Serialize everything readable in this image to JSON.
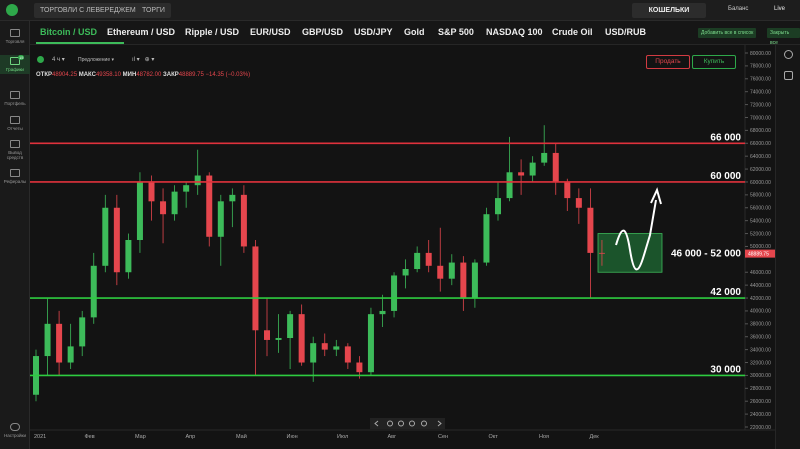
{
  "topbar": {
    "tabs": [
      "ТОРГОВЛИ С ЛЕВЕРЕДЖЕМ",
      "ТОРГИ"
    ],
    "wallets": "КОШЕЛЬКИ",
    "balance": "Баланс",
    "mode": "Live"
  },
  "sidebar": [
    "Торговля",
    "Графики",
    "Портфель",
    "Отчеты",
    "Вывод средств",
    "Рефералы"
  ],
  "settings": "Настройки",
  "badge": "15",
  "instruments": [
    "Bitcoin / USD",
    "Ethereum / USD",
    "Ripple / USD",
    "EUR/USD",
    "GBP/USD",
    "USD/JPY",
    "Gold",
    "S&P 500",
    "NASDAQ 100",
    "Crude Oil",
    "USD/RUB"
  ],
  "actions": [
    "Добавить все в список",
    "Закрыть все"
  ],
  "toolbar": {
    "interval": "4 ч",
    "price_type": "Предложение"
  },
  "buttons": {
    "sell": "Продать",
    "buy": "Купить"
  },
  "ohlc_info": [
    {
      "label": "ОТКР",
      "value": "48904.25"
    },
    {
      "label": "МАКС",
      "value": "49358.10"
    },
    {
      "label": "МИН",
      "value": "48782.00"
    },
    {
      "label": "ЗАКР",
      "value": "48889.75"
    }
  ],
  "change": "−14.35 (−0.03%)",
  "chart": {
    "type": "candlestick",
    "categories": [
      "2021",
      "Фев",
      "Мар",
      "Апр",
      "Май",
      "Июн",
      "Июл",
      "Авг",
      "Сен",
      "Окт",
      "Ноя",
      "Дек"
    ],
    "up_color": "#3dbb5a",
    "down_color": "#e5464d",
    "ylim": [
      22000,
      80000
    ],
    "yticks": [
      {
        "value": 80000,
        "label": "80000.00"
      },
      {
        "value": 78000,
        "label": "78000.00"
      },
      {
        "value": 76000,
        "label": "76000.00"
      },
      {
        "value": 74000,
        "label": "74000.00"
      },
      {
        "value": 72000,
        "label": "72000.00"
      },
      {
        "value": 70000,
        "label": "70000.00"
      },
      {
        "value": 68000,
        "label": "68000.00"
      },
      {
        "value": 66000,
        "label": "66000.00"
      },
      {
        "value": 64000,
        "label": "64000.00"
      },
      {
        "value": 62000,
        "label": "62000.00"
      },
      {
        "value": 60000,
        "label": "60000.00"
      },
      {
        "value": 58000,
        "label": "58000.00"
      },
      {
        "value": 56000,
        "label": "56000.00"
      },
      {
        "value": 54000,
        "label": "54000.00"
      },
      {
        "value": 52000,
        "label": "52000.00"
      },
      {
        "value": 50000,
        "label": "50000.00"
      },
      {
        "value": 46000,
        "label": "46000.00"
      },
      {
        "value": 44000,
        "label": "44000.00"
      },
      {
        "value": 42000,
        "label": "42000.00"
      },
      {
        "value": 40000,
        "label": "40000.00"
      },
      {
        "value": 38000,
        "label": "38000.00"
      },
      {
        "value": 36000,
        "label": "36000.00"
      },
      {
        "value": 34000,
        "label": "34000.00"
      },
      {
        "value": 32000,
        "label": "32000.00"
      },
      {
        "value": 30000,
        "label": "30000.00"
      },
      {
        "value": 28000,
        "label": "28000.00"
      },
      {
        "value": 26000,
        "label": "26000.00"
      },
      {
        "value": 24000,
        "label": "24000.00"
      },
      {
        "value": 22000,
        "label": "22000.00"
      }
    ],
    "last_price": {
      "value": 48889.75,
      "label": "48889.75"
    },
    "candles": [
      [
        27000,
        34000,
        26000,
        33000
      ],
      [
        33000,
        41900,
        30000,
        38000
      ],
      [
        38000,
        40000,
        30000,
        32000
      ],
      [
        32000,
        38000,
        31000,
        34500
      ],
      [
        34500,
        40000,
        33000,
        39000
      ],
      [
        39000,
        49000,
        38000,
        47000
      ],
      [
        47000,
        58000,
        46000,
        56000
      ],
      [
        56000,
        58000,
        44000,
        46000
      ],
      [
        46000,
        52000,
        45000,
        51000
      ],
      [
        51000,
        61500,
        49000,
        60000
      ],
      [
        60000,
        61000,
        54000,
        57000
      ],
      [
        57000,
        59000,
        50500,
        55000
      ],
      [
        55000,
        59500,
        54000,
        58500
      ],
      [
        58500,
        60000,
        56000,
        59500
      ],
      [
        59500,
        65000,
        58000,
        61000
      ],
      [
        61000,
        61500,
        50000,
        51500
      ],
      [
        51500,
        58000,
        47000,
        57000
      ],
      [
        57000,
        59000,
        53000,
        58000
      ],
      [
        58000,
        59500,
        49000,
        50000
      ],
      [
        50000,
        51000,
        30000,
        37000
      ],
      [
        37000,
        42000,
        33000,
        35500
      ],
      [
        35500,
        39500,
        33500,
        35800
      ],
      [
        35800,
        40000,
        31000,
        39500
      ],
      [
        39500,
        41000,
        31500,
        32000
      ],
      [
        32000,
        36000,
        29000,
        35000
      ],
      [
        35000,
        36500,
        33000,
        34000
      ],
      [
        34000,
        35500,
        33000,
        34500
      ],
      [
        34500,
        35000,
        31000,
        32000
      ],
      [
        32000,
        33000,
        29500,
        30500
      ],
      [
        30500,
        40500,
        30000,
        39500
      ],
      [
        39500,
        42500,
        37500,
        40000
      ],
      [
        40000,
        46000,
        39000,
        45500
      ],
      [
        45500,
        48000,
        43500,
        46500
      ],
      [
        46500,
        50000,
        46000,
        49000
      ],
      [
        49000,
        51000,
        46000,
        47000
      ],
      [
        47000,
        52900,
        43000,
        45000
      ],
      [
        45000,
        48800,
        44000,
        47500
      ],
      [
        47500,
        48500,
        40000,
        42000
      ],
      [
        42000,
        48000,
        40500,
        47500
      ],
      [
        47500,
        56000,
        47000,
        55000
      ],
      [
        55000,
        60000,
        54000,
        57500
      ],
      [
        57500,
        67000,
        57000,
        61500
      ],
      [
        61500,
        63500,
        58000,
        61000
      ],
      [
        61000,
        64000,
        60000,
        63000
      ],
      [
        63000,
        68800,
        62500,
        64500
      ],
      [
        64500,
        66000,
        58000,
        60000
      ],
      [
        60000,
        60500,
        55500,
        57500
      ],
      [
        57500,
        59000,
        53500,
        56000
      ],
      [
        56000,
        59000,
        42000,
        49000
      ],
      [
        49000,
        51000,
        47000,
        48890
      ]
    ],
    "levels": [
      {
        "value": 66000,
        "label": "66 000",
        "color": "#e0323c"
      },
      {
        "value": 60000,
        "label": "60 000",
        "color": "#e0323c"
      },
      {
        "value": 42000,
        "label": "42 000",
        "color": "#2ecc40"
      },
      {
        "value": 30000,
        "label": "30 000",
        "color": "#2ecc40"
      }
    ],
    "zone": {
      "low": 46000,
      "high": 52000,
      "label": "46 000 - 52 000",
      "color": "#1f6b34"
    }
  }
}
